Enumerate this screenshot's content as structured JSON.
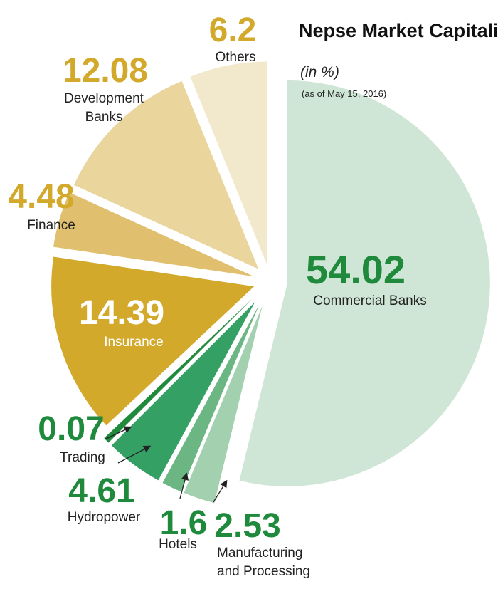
{
  "chart_data": {
    "type": "pie",
    "title": "Nepse Market Capitalisation",
    "subtitle": "(in %)",
    "note": "(as of May 15, 2016)",
    "slices": [
      {
        "value_label": "54.02",
        "label": "Commercial Banks",
        "value": 54.02,
        "color": "#cfe6d6",
        "value_color": "#1f8a3c"
      },
      {
        "value_label": "2.53",
        "label": "Manufacturing and Processing",
        "label_lines": [
          "Manufacturing",
          "and Processing"
        ],
        "value": 2.53,
        "color": "#a3d1b0",
        "value_color": "#1f8a3c"
      },
      {
        "value_label": "1.6",
        "label": "Hotels",
        "value": 1.6,
        "color": "#6cb683",
        "value_color": "#1f8a3c"
      },
      {
        "value_label": "4.61",
        "label": "Hydropower",
        "value": 4.61,
        "color": "#35a064",
        "value_color": "#1f8a3c"
      },
      {
        "value_label": "0.07",
        "label": "Trading",
        "value": 0.07,
        "color": "#1f8a3c",
        "value_color": "#1f8a3c"
      },
      {
        "value_label": "14.39",
        "label": "Insurance",
        "value": 14.39,
        "color": "#d3a92c",
        "value_color": "#ffffff"
      },
      {
        "value_label": "4.48",
        "label": "Finance",
        "value": 4.48,
        "color": "#e0c06e",
        "value_color": "#d3a92c"
      },
      {
        "value_label": "12.08",
        "label": "Development Banks",
        "label_lines": [
          "Development",
          "Banks"
        ],
        "value": 12.08,
        "color": "#ead59d",
        "value_color": "#d3a92c"
      },
      {
        "value_label": "6.2",
        "label": "Others",
        "value": 6.2,
        "color": "#f2e8cb",
        "value_color": "#d3a92c"
      }
    ]
  }
}
